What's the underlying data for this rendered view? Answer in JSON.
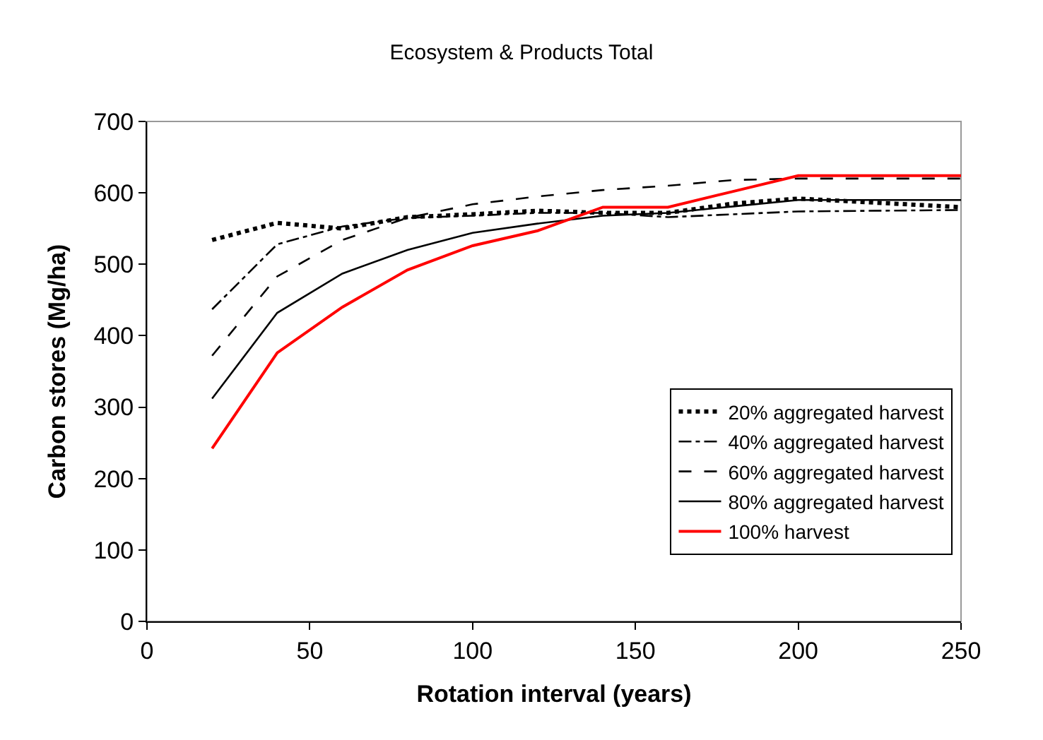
{
  "chart_data": {
    "type": "line",
    "title": "Ecosystem & Products Total",
    "xlabel": "Rotation interval (years)",
    "ylabel": "Carbon stores (Mg/ha)",
    "x": [
      20,
      40,
      60,
      80,
      100,
      120,
      140,
      160,
      180,
      200,
      250
    ],
    "series": [
      {
        "name": "20% aggregated harvest",
        "color": "#000000",
        "line_style": "dotted",
        "values": [
          534,
          558,
          550,
          566,
          570,
          575,
          572,
          572,
          585,
          592,
          580
        ]
      },
      {
        "name": "40% aggregated harvest",
        "color": "#000000",
        "line_style": "dashdot",
        "values": [
          437,
          528,
          553,
          565,
          568,
          572,
          572,
          566,
          570,
          574,
          576
        ]
      },
      {
        "name": "60% aggregated harvest",
        "color": "#000000",
        "line_style": "dashed",
        "values": [
          372,
          483,
          534,
          565,
          584,
          595,
          604,
          610,
          618,
          620,
          620
        ]
      },
      {
        "name": "80% aggregated harvest",
        "color": "#000000",
        "line_style": "solid",
        "values": [
          312,
          432,
          487,
          520,
          544,
          557,
          568,
          572,
          581,
          590,
          590
        ]
      },
      {
        "name": "100% harvest",
        "color": "#ff0000",
        "line_style": "solid",
        "values": [
          242,
          376,
          440,
          492,
          526,
          547,
          580,
          580,
          602,
          624,
          624
        ]
      }
    ],
    "xlim": [
      0,
      250
    ],
    "xticks": [
      0,
      50,
      100,
      150,
      200,
      250
    ],
    "ylim": [
      0,
      700
    ],
    "yticks": [
      0,
      100,
      200,
      300,
      400,
      500,
      600,
      700
    ],
    "grid": false,
    "legend": "bottom right",
    "marker": "none"
  }
}
